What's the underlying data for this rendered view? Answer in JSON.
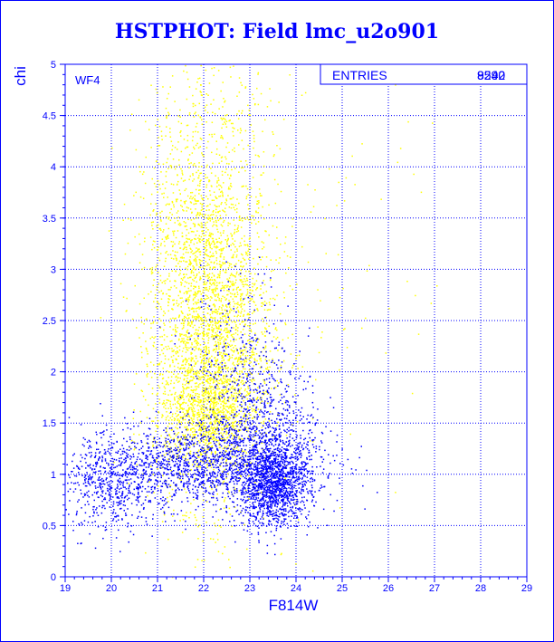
{
  "title": "HSTPHOT: Field lmc_u2o901",
  "chart_data": {
    "type": "scatter",
    "title": "HSTPHOT: Field lmc_u2o901",
    "xlabel": "F814W",
    "ylabel": "chi",
    "xlim": [
      19,
      29
    ],
    "ylim": [
      0,
      5
    ],
    "xticks": [
      "19",
      "20",
      "21",
      "22",
      "23",
      "24",
      "25",
      "26",
      "27",
      "28",
      "29"
    ],
    "yticks": [
      "0",
      "0.5",
      "1",
      "1.5",
      "2",
      "2.5",
      "3",
      "3.5",
      "4",
      "4.5",
      "5"
    ],
    "grid": true,
    "annotation": "WF4",
    "stats_label": "ENTRIES",
    "stats_value_1": "9592",
    "stats_value_2": "8240",
    "series": [
      {
        "color": "#ffff00",
        "clusters": [
          {
            "x": 22.2,
            "y": 2.4,
            "sx": 0.65,
            "sy": 0.85,
            "n": 2600
          },
          {
            "x": 22.0,
            "y": 1.6,
            "sx": 0.55,
            "sy": 0.3,
            "n": 900
          },
          {
            "x": 21.6,
            "y": 3.4,
            "sx": 0.55,
            "sy": 0.8,
            "n": 500
          },
          {
            "x": 22.4,
            "y": 4.3,
            "sx": 0.6,
            "sy": 0.45,
            "n": 150
          },
          {
            "x": 24.5,
            "y": 3.0,
            "sx": 1.2,
            "sy": 1.2,
            "n": 90
          }
        ]
      },
      {
        "color": "#0000ff",
        "clusters": [
          {
            "x": 23.5,
            "y": 0.9,
            "sx": 0.4,
            "sy": 0.2,
            "n": 1300
          },
          {
            "x": 21.8,
            "y": 1.1,
            "sx": 1.3,
            "sy": 0.2,
            "n": 1500
          },
          {
            "x": 23.3,
            "y": 1.4,
            "sx": 0.6,
            "sy": 0.35,
            "n": 600
          },
          {
            "x": 22.8,
            "y": 2.0,
            "sx": 0.6,
            "sy": 0.5,
            "n": 300
          },
          {
            "x": 20.0,
            "y": 0.85,
            "sx": 0.5,
            "sy": 0.22,
            "n": 400
          }
        ]
      }
    ]
  }
}
